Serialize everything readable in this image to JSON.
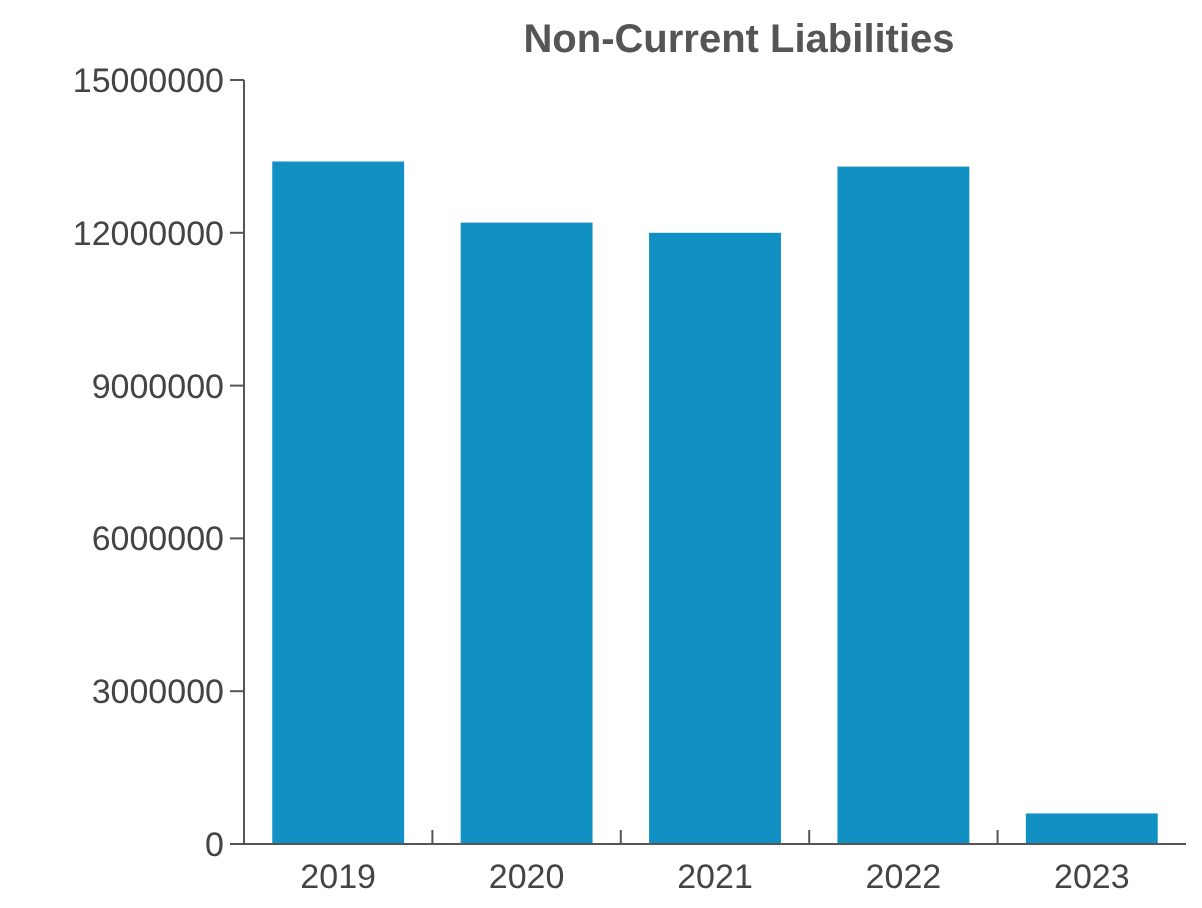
{
  "chart_data": {
    "type": "bar",
    "title": "Non-Current Liabilities",
    "categories": [
      "2019",
      "2020",
      "2021",
      "2022",
      "2023"
    ],
    "values": [
      13400000,
      12200000,
      12000000,
      13300000,
      600000
    ],
    "color": "#1190c4",
    "ylim": [
      0,
      15000000
    ],
    "yticks": [
      0,
      3000000,
      6000000,
      9000000,
      12000000,
      15000000
    ],
    "grid": false
  }
}
